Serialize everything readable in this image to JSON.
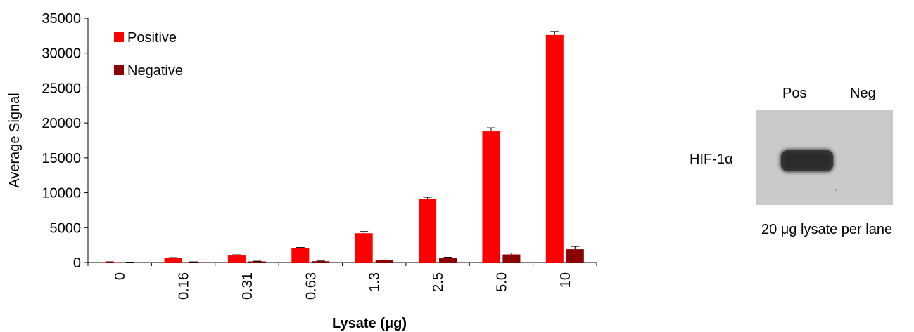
{
  "chart_data": {
    "type": "bar",
    "categories": [
      "0",
      "0.16",
      "0.31",
      "0.63",
      "1.3",
      "2.5",
      "5.0",
      "10"
    ],
    "series": [
      {
        "name": "Positive",
        "color": "#ff0000",
        "values": [
          60,
          620,
          1000,
          2050,
          4200,
          9100,
          18800,
          32600
        ],
        "errors": [
          40,
          80,
          100,
          100,
          250,
          250,
          500,
          500
        ]
      },
      {
        "name": "Negative",
        "color": "#8b0000",
        "values": [
          30,
          60,
          150,
          180,
          300,
          600,
          1150,
          1900
        ],
        "errors": [
          20,
          30,
          40,
          40,
          60,
          150,
          200,
          400
        ]
      }
    ],
    "xlabel": "Lysate (μg)",
    "ylabel": "Average Signal",
    "ylim": [
      0,
      35000
    ],
    "yticks": [
      "0",
      "5000",
      "10000",
      "15000",
      "20000",
      "25000",
      "30000",
      "35000"
    ],
    "grid": false,
    "legend": "top-left"
  },
  "blot": {
    "lane_labels": [
      "Pos",
      "Neg"
    ],
    "protein_label": "HIF-1α",
    "caption": "20 μg lysate per lane"
  }
}
